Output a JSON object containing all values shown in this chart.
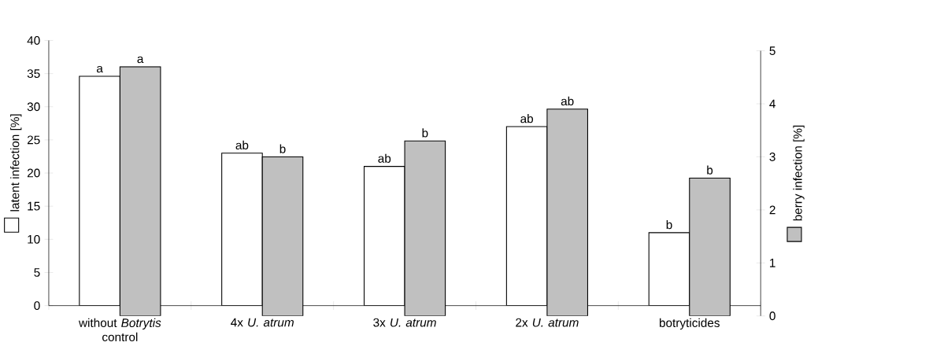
{
  "chart_data": {
    "type": "bar",
    "categories": [
      "without *Botrytis* control",
      "4x *U. atrum*",
      "3x *U. atrum*",
      "2x *U. atrum*",
      "botryticides"
    ],
    "series": [
      {
        "type": "bar",
        "color": "#ffffff",
        "values": [
          34.6,
          23,
          21,
          27,
          11
        ],
        "value_labels": [
          "a",
          "ab",
          "ab",
          "ab",
          "b"
        ]
      },
      {
        "type": "bar",
        "axis": "y2",
        "color": "#c0c0c0",
        "values": [
          4.7,
          3.0,
          3.3,
          3.9,
          2.6
        ],
        "value_labels": [
          "a",
          "b",
          "b",
          "ab",
          "b"
        ]
      }
    ],
    "ylabel": "latent infection [%]",
    "y2label": "berry infection [%]",
    "ylim": [
      0,
      40
    ],
    "yticks": [
      0,
      5,
      10,
      15,
      20,
      25,
      30,
      35,
      40
    ],
    "y2lim": [
      0,
      5
    ],
    "y2ticks": [
      0,
      1,
      2,
      3,
      4,
      5
    ],
    "grid": false
  }
}
